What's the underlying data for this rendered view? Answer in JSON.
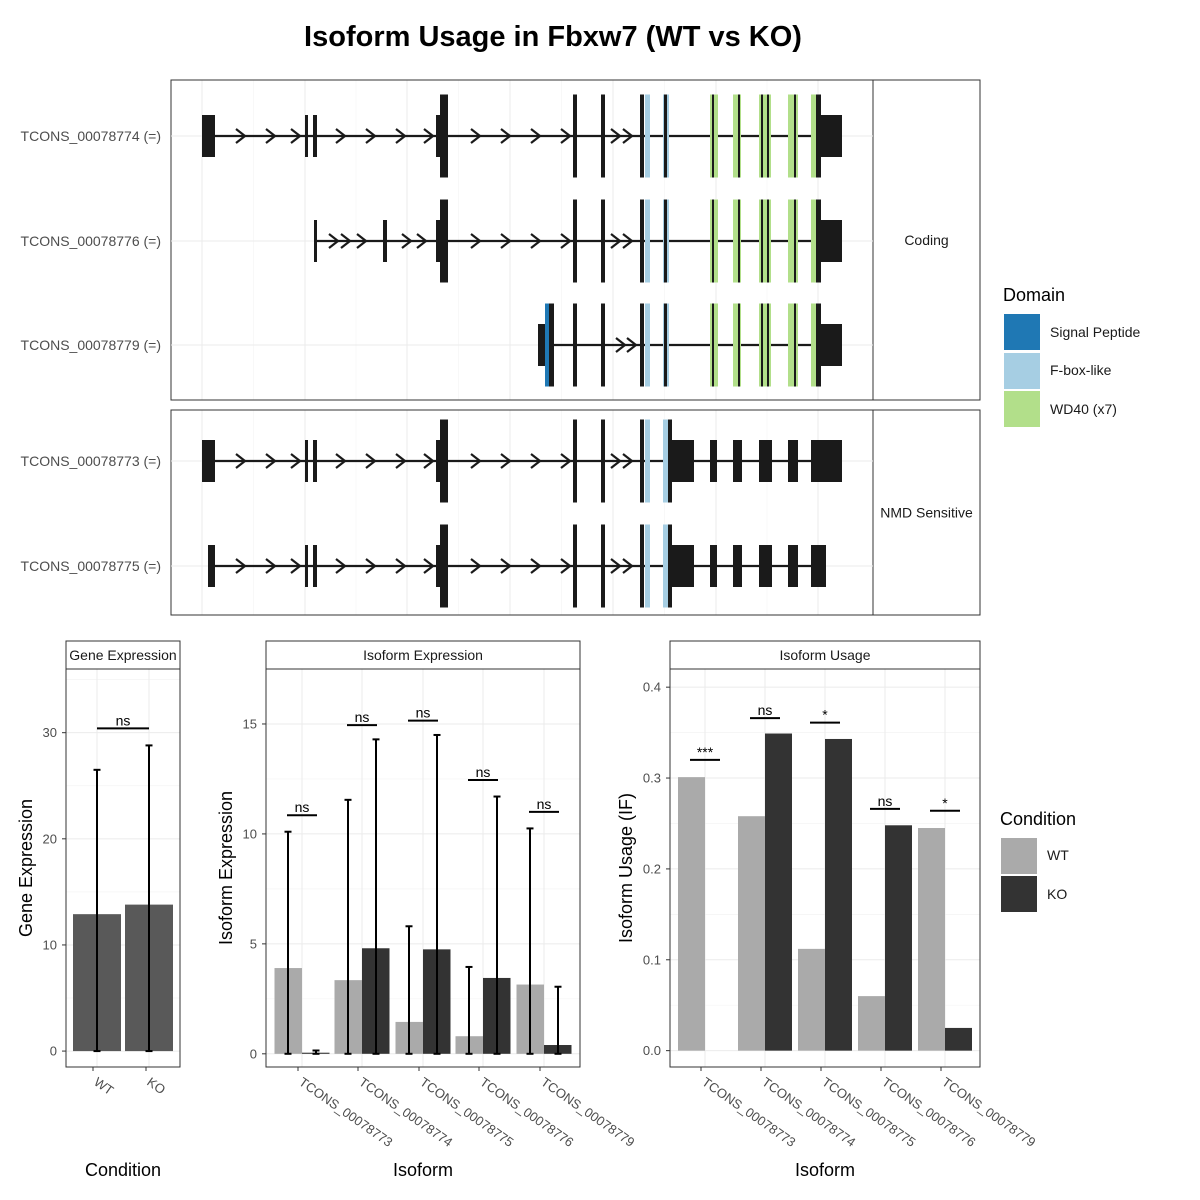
{
  "title": "Isoform Usage in Fbxw7 (WT vs KO)",
  "colors": {
    "wt": "#aaaaaa",
    "ko": "#333333",
    "gene_bar": "#595959",
    "exon": "#1a1a1a",
    "signal_peptide": "#1f78b4",
    "fbox": "#a6cee3",
    "wd40": "#b2df8a"
  },
  "transcripts": {
    "coding_label": "Coding",
    "nmd_label": "NMD Sensitive",
    "coding": [
      "TCONS_00078774 (=)",
      "TCONS_00078776 (=)",
      "TCONS_00078779 (=)"
    ],
    "nmd": [
      "TCONS_00078773 (=)",
      "TCONS_00078775 (=)"
    ]
  },
  "domain_legend": {
    "title": "Domain",
    "items": [
      "Signal Peptide",
      "F-box-like",
      "WD40 (x7)"
    ]
  },
  "condition_legend": {
    "title": "Condition",
    "items": [
      "WT",
      "KO"
    ]
  },
  "chart_data": [
    {
      "type": "bar",
      "title": "Gene Expression",
      "xlabel": "Condition",
      "ylabel": "Gene Expression",
      "categories": [
        "WT",
        "KO"
      ],
      "values": [
        12.9,
        13.8
      ],
      "error_upper": [
        26.5,
        28.8
      ],
      "error_lower": [
        0,
        0
      ],
      "ylim": [
        -1.5,
        36
      ],
      "yticks": [
        0,
        10,
        20,
        30
      ],
      "significance": [
        {
          "label": "ns",
          "y": 30.4
        }
      ]
    },
    {
      "type": "bar",
      "title": "Isoform Expression",
      "xlabel": "Isoform",
      "ylabel": "Isoform Expression",
      "categories": [
        "TCONS_00078773",
        "TCONS_00078774",
        "TCONS_00078775",
        "TCONS_00078776",
        "TCONS_00078779"
      ],
      "series": [
        {
          "name": "WT",
          "values": [
            3.9,
            3.35,
            1.45,
            0.8,
            3.15
          ],
          "error_upper": [
            10.1,
            11.55,
            5.8,
            3.95,
            10.25
          ]
        },
        {
          "name": "KO",
          "values": [
            0.05,
            4.8,
            4.75,
            3.45,
            0.4
          ],
          "error_upper": [
            0.15,
            14.3,
            14.5,
            11.7,
            3.05
          ]
        }
      ],
      "ylim": [
        -0.6,
        17.5
      ],
      "yticks": [
        0,
        5,
        10,
        15
      ],
      "significance": [
        {
          "label": "ns",
          "y": 10.85
        },
        {
          "label": "ns",
          "y": 14.95
        },
        {
          "label": "ns",
          "y": 15.15
        },
        {
          "label": "ns",
          "y": 12.45
        },
        {
          "label": "ns",
          "y": 11.0
        }
      ]
    },
    {
      "type": "bar",
      "title": "Isoform Usage",
      "xlabel": "Isoform",
      "ylabel": "Isoform Usage (IF)",
      "categories": [
        "TCONS_00078773",
        "TCONS_00078774",
        "TCONS_00078775",
        "TCONS_00078776",
        "TCONS_00078779"
      ],
      "series": [
        {
          "name": "WT",
          "values": [
            0.301,
            0.258,
            0.112,
            0.06,
            0.245
          ]
        },
        {
          "name": "KO",
          "values": [
            0.0,
            0.349,
            0.343,
            0.248,
            0.025
          ]
        }
      ],
      "ylim": [
        -0.018,
        0.42
      ],
      "yticks": [
        0.0,
        0.1,
        0.2,
        0.3,
        0.4
      ],
      "significance": [
        {
          "label": "***",
          "y": 0.32
        },
        {
          "label": "ns",
          "y": 0.366
        },
        {
          "label": "*",
          "y": 0.361
        },
        {
          "label": "ns",
          "y": 0.266
        },
        {
          "label": "*",
          "y": 0.264
        }
      ]
    }
  ]
}
